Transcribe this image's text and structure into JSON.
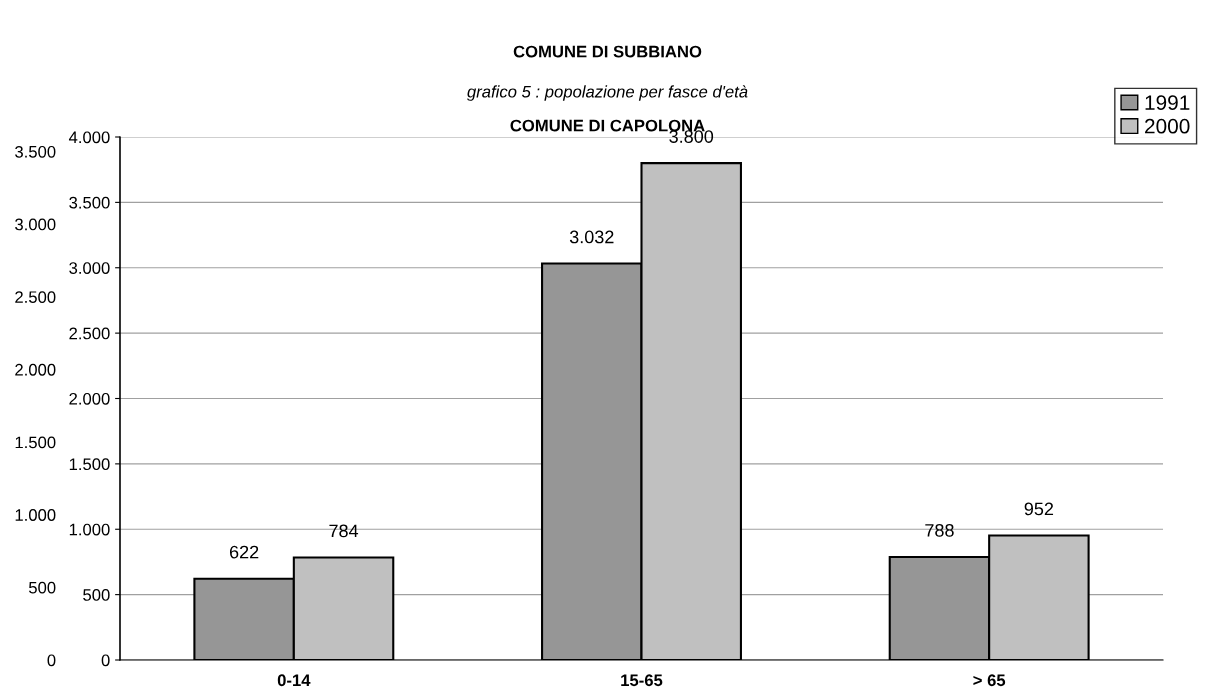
{
  "chart_data": {
    "type": "bar",
    "title": "COMUNE DI SUBBIANO",
    "subtitle": "grafico 5 : popolazione per fasce d'età",
    "annotations": [
      "COMUNE DI CAPOLONA"
    ],
    "categories": [
      "0-14",
      "15-65",
      "> 65"
    ],
    "series": [
      {
        "name": "1991",
        "color": "#969696",
        "values": [
          622,
          3032,
          788
        ],
        "value_labels": [
          "622",
          "3.032",
          "788"
        ]
      },
      {
        "name": "2000",
        "color": "#c0c0c0",
        "values": [
          784,
          3800,
          952
        ],
        "value_labels": [
          "784",
          "3.800",
          "952"
        ]
      }
    ],
    "ylim": [
      0,
      4000
    ],
    "yticks": [
      0,
      500,
      {
        "value": 1000,
        "label": "1.000"
      },
      {
        "value": 1500,
        "label": "1.500"
      },
      {
        "value": 2000,
        "label": "2.000"
      },
      {
        "value": 2500,
        "label": "2.500"
      },
      {
        "value": 3000,
        "label": "3.000"
      },
      {
        "value": 3500,
        "label": "3.500"
      },
      {
        "value": 4000,
        "label": "4.000"
      }
    ],
    "y2lim": [
      0,
      3600
    ],
    "y2ticks": [
      0,
      500,
      {
        "value": 1000,
        "label": "1.000"
      },
      {
        "value": 1500,
        "label": "1.500"
      },
      {
        "value": 2000,
        "label": "2.000"
      },
      {
        "value": 2500,
        "label": "2.500"
      },
      {
        "value": 3000,
        "label": "3.000"
      },
      {
        "value": 3500,
        "label": "3.500"
      }
    ],
    "grid": "y",
    "legend": "top right"
  }
}
